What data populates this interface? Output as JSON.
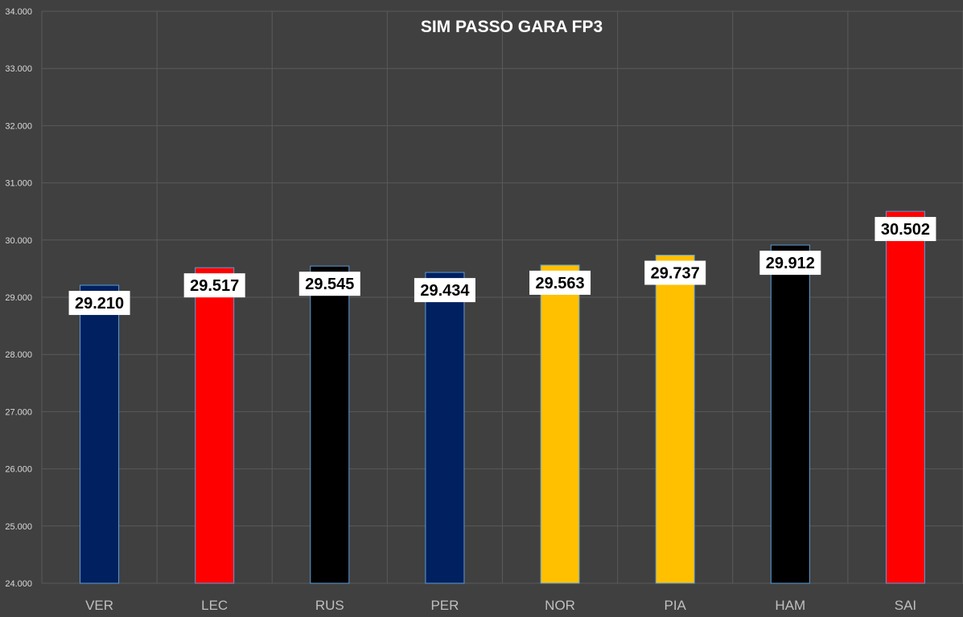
{
  "chart_data": {
    "type": "bar",
    "title": "SIM PASSO GARA FP3",
    "xlabel": "",
    "ylabel": "",
    "ylim": [
      24,
      34
    ],
    "yticks": [
      "24.000",
      "25.000",
      "26.000",
      "27.000",
      "28.000",
      "29.000",
      "30.000",
      "31.000",
      "32.000",
      "33.000",
      "34.000"
    ],
    "categories": [
      "VER",
      "LEC",
      "RUS",
      "PER",
      "NOR",
      "PIA",
      "HAM",
      "SAI"
    ],
    "values": [
      29.21,
      29.517,
      29.545,
      29.434,
      29.563,
      29.737,
      29.912,
      30.502
    ],
    "value_labels": [
      "29.210",
      "29.517",
      "29.545",
      "29.434",
      "29.563",
      "29.737",
      "29.912",
      "30.502"
    ],
    "bar_colors": [
      "#002060",
      "#ff0000",
      "#000000",
      "#002060",
      "#ffc000",
      "#ffc000",
      "#000000",
      "#ff0000"
    ],
    "grid": true,
    "background": "#404040"
  }
}
